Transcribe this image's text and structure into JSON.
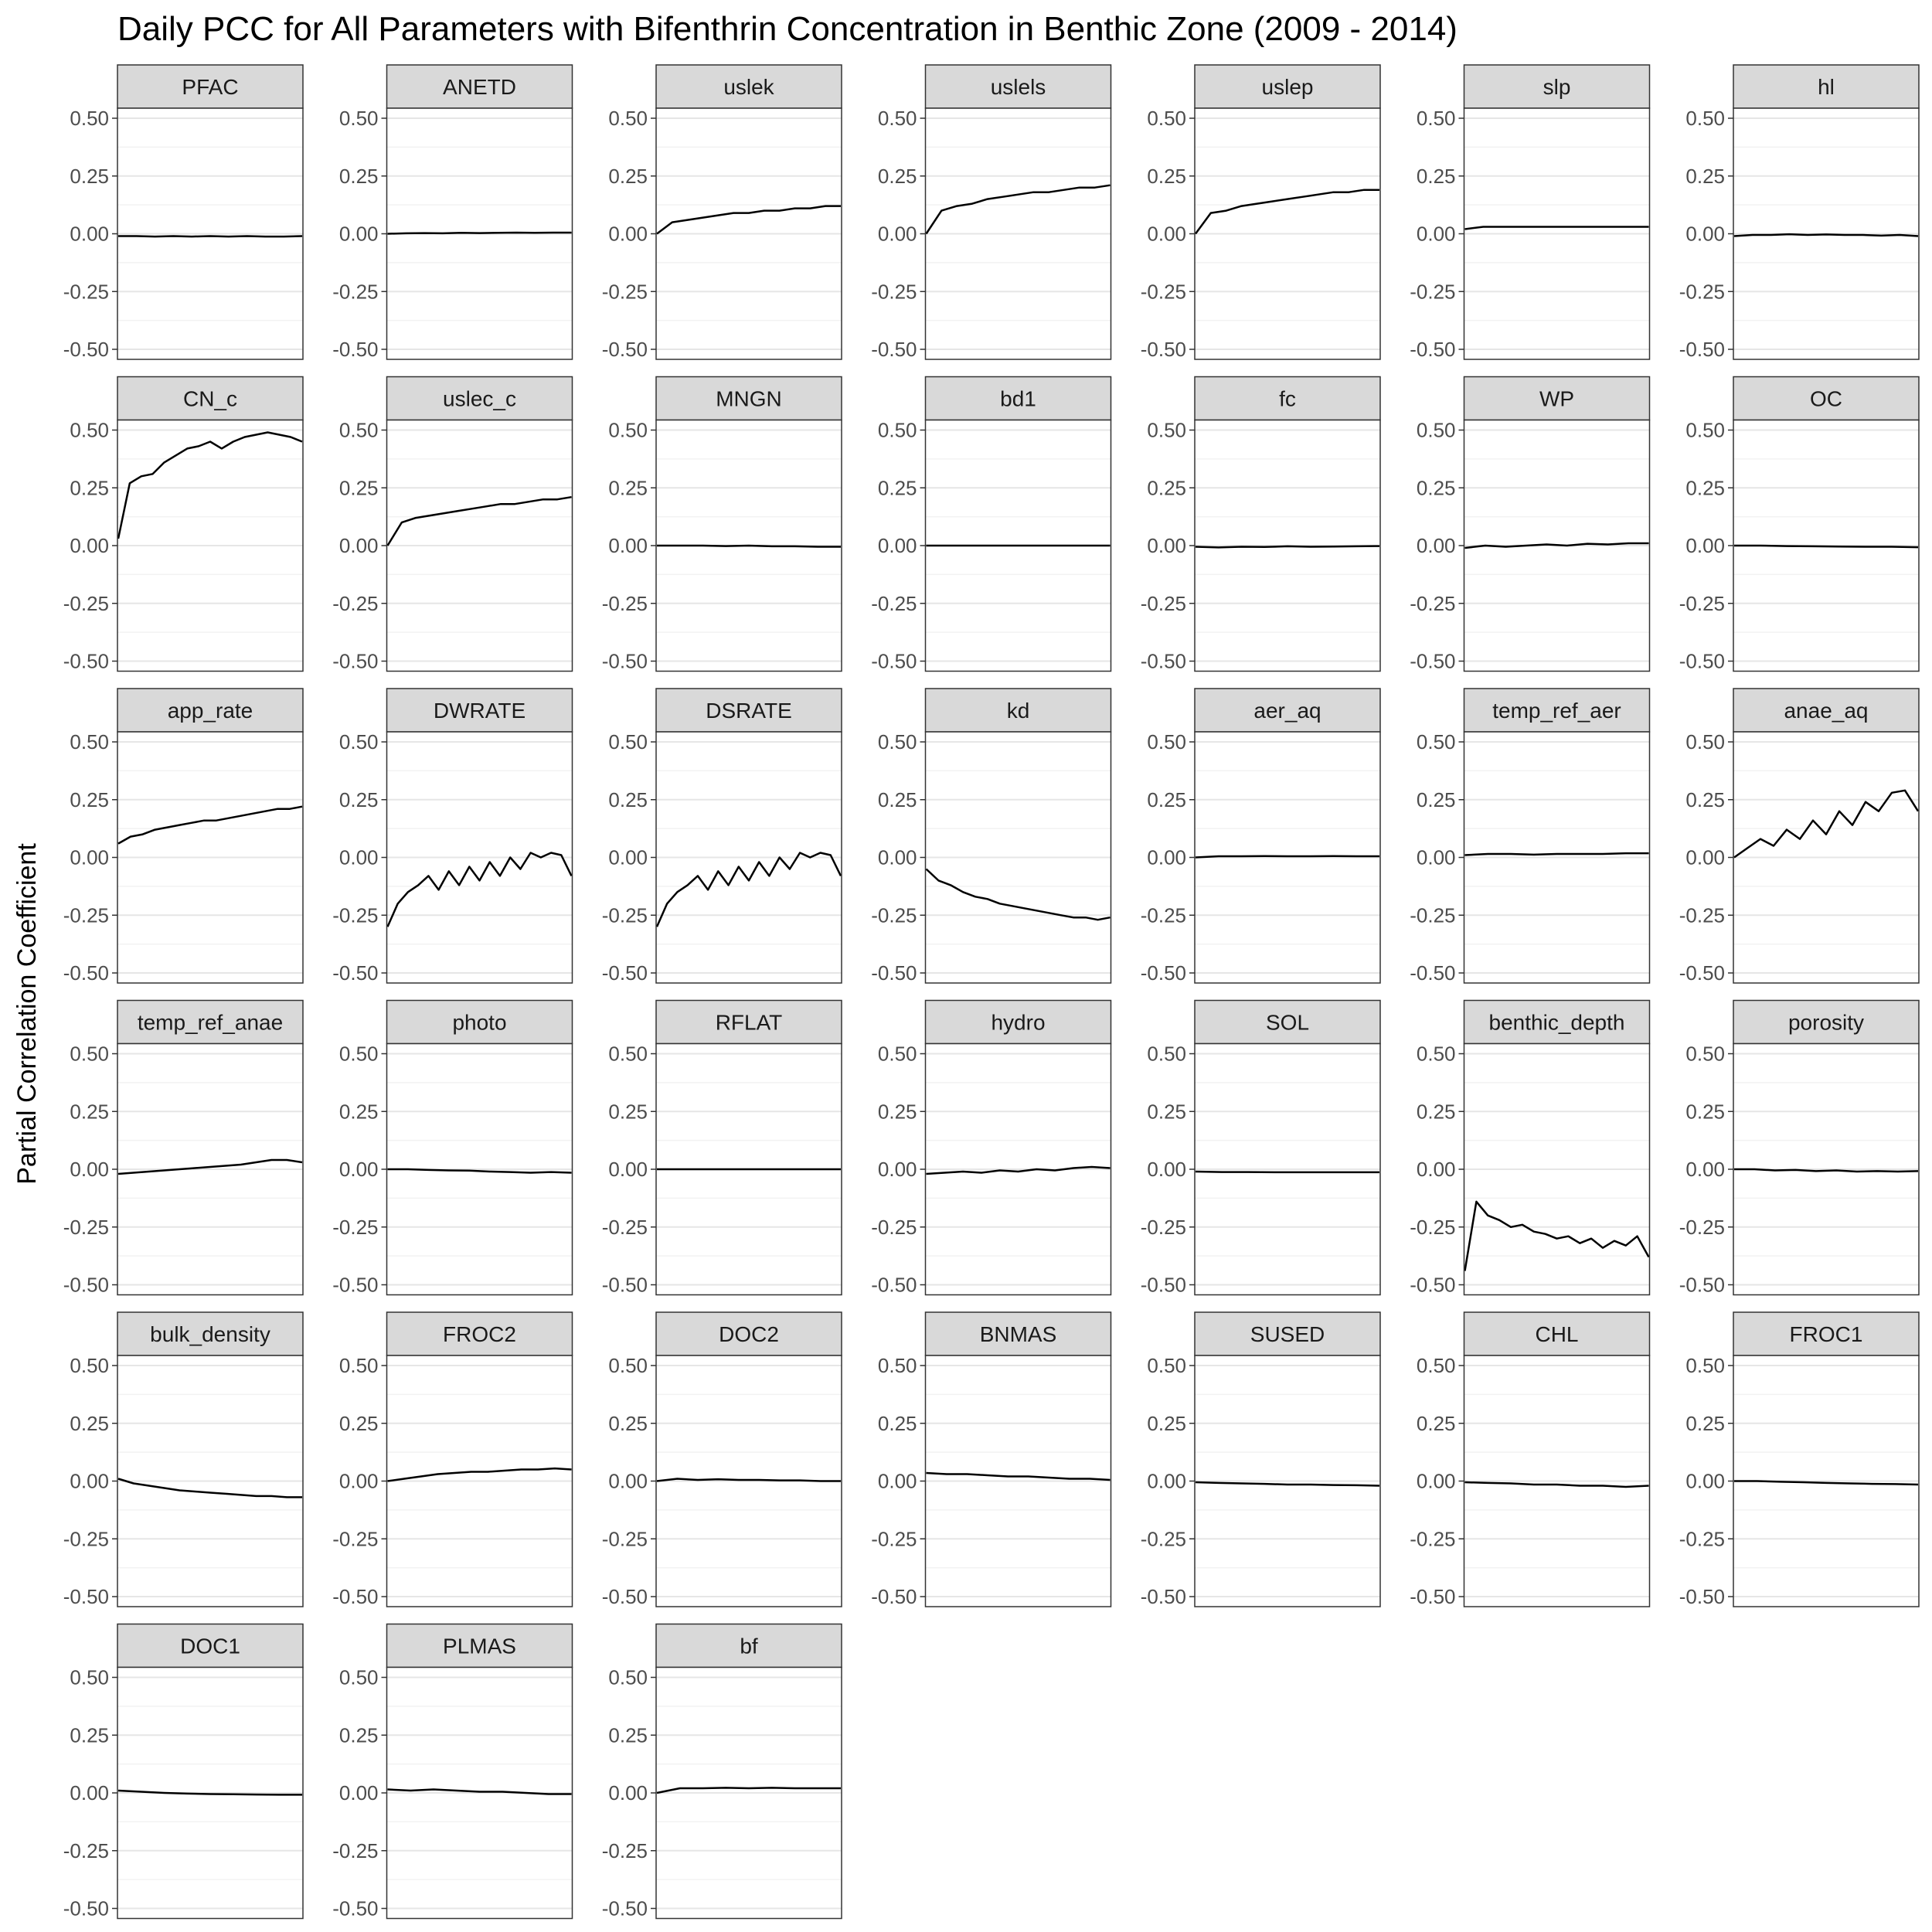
{
  "title": "Daily PCC for All Parameters with Bifenthrin Concentration in Benthic Zone (2009 - 2014)",
  "chart_data": {
    "type": "line",
    "title": "Daily PCC for All Parameters with Bifenthrin Concentration in Benthic Zone (2009 - 2014)",
    "xlabel": "",
    "ylabel": "Partial Correlation Coefficient",
    "ylim": [
      -0.5,
      0.5
    ],
    "yticks": [
      0.5,
      0.25,
      0.0,
      -0.25,
      -0.5
    ],
    "ytick_labels": [
      "0.50",
      "0.25",
      "0.00",
      "-0.25",
      "-0.50"
    ],
    "grid": true,
    "facet_cols": 7,
    "line_color": "#000000",
    "strip_color": "#d9d9d9",
    "panels": [
      {
        "name": "PFAC",
        "values": [
          -0.01,
          -0.01,
          -0.012,
          -0.01,
          -0.012,
          -0.01,
          -0.012,
          -0.01,
          -0.012,
          -0.012,
          -0.01
        ]
      },
      {
        "name": "ANETD",
        "values": [
          0.0,
          0.002,
          0.003,
          0.002,
          0.004,
          0.003,
          0.004,
          0.005,
          0.004,
          0.005,
          0.005
        ]
      },
      {
        "name": "uslek",
        "values": [
          0.0,
          0.05,
          0.06,
          0.07,
          0.08,
          0.09,
          0.09,
          0.1,
          0.1,
          0.11,
          0.11,
          0.12,
          0.12
        ]
      },
      {
        "name": "uslels",
        "values": [
          0.0,
          0.1,
          0.12,
          0.13,
          0.15,
          0.16,
          0.17,
          0.18,
          0.18,
          0.19,
          0.2,
          0.2,
          0.21
        ]
      },
      {
        "name": "uslep",
        "values": [
          0.0,
          0.09,
          0.1,
          0.12,
          0.13,
          0.14,
          0.15,
          0.16,
          0.17,
          0.18,
          0.18,
          0.19,
          0.19
        ]
      },
      {
        "name": "slp",
        "values": [
          0.02,
          0.03,
          0.03,
          0.03,
          0.03,
          0.03,
          0.03,
          0.03,
          0.03,
          0.03,
          0.03
        ]
      },
      {
        "name": "hl",
        "values": [
          -0.01,
          -0.005,
          -0.005,
          -0.002,
          -0.005,
          -0.003,
          -0.005,
          -0.005,
          -0.008,
          -0.005,
          -0.01
        ]
      },
      {
        "name": "CN_c",
        "values": [
          0.03,
          0.27,
          0.3,
          0.31,
          0.36,
          0.39,
          0.42,
          0.43,
          0.45,
          0.42,
          0.45,
          0.47,
          0.48,
          0.49,
          0.48,
          0.47,
          0.45
        ]
      },
      {
        "name": "uslec_c",
        "values": [
          0.0,
          0.1,
          0.12,
          0.13,
          0.14,
          0.15,
          0.16,
          0.17,
          0.18,
          0.18,
          0.19,
          0.2,
          0.2,
          0.21
        ]
      },
      {
        "name": "MNGN",
        "values": [
          0.0,
          0.0,
          0.0,
          -0.002,
          0.0,
          -0.003,
          -0.003,
          -0.005,
          -0.005
        ]
      },
      {
        "name": "bd1",
        "values": [
          0.0,
          0.0,
          0.0,
          0.0,
          0.0,
          0.0,
          0.0
        ]
      },
      {
        "name": "fc",
        "values": [
          -0.005,
          -0.008,
          -0.005,
          -0.006,
          -0.003,
          -0.005,
          -0.004,
          -0.003,
          -0.002
        ]
      },
      {
        "name": "WP",
        "values": [
          -0.01,
          0.0,
          -0.005,
          0.0,
          0.005,
          0.0,
          0.008,
          0.005,
          0.01,
          0.01
        ]
      },
      {
        "name": "OC",
        "values": [
          0.0,
          0.0,
          -0.002,
          -0.003,
          -0.004,
          -0.005,
          -0.005,
          -0.007
        ]
      },
      {
        "name": "app_rate",
        "values": [
          0.06,
          0.09,
          0.1,
          0.12,
          0.13,
          0.14,
          0.15,
          0.16,
          0.16,
          0.17,
          0.18,
          0.19,
          0.2,
          0.21,
          0.21,
          0.22
        ]
      },
      {
        "name": "DWRATE",
        "values": [
          -0.3,
          -0.2,
          -0.15,
          -0.12,
          -0.08,
          -0.14,
          -0.06,
          -0.12,
          -0.04,
          -0.1,
          -0.02,
          -0.08,
          0.0,
          -0.05,
          0.02,
          0.0,
          0.02,
          0.01,
          -0.08
        ]
      },
      {
        "name": "DSRATE",
        "values": [
          -0.3,
          -0.2,
          -0.15,
          -0.12,
          -0.08,
          -0.14,
          -0.06,
          -0.12,
          -0.04,
          -0.1,
          -0.02,
          -0.08,
          0.0,
          -0.05,
          0.02,
          0.0,
          0.02,
          0.01,
          -0.08
        ]
      },
      {
        "name": "kd",
        "values": [
          -0.05,
          -0.1,
          -0.12,
          -0.15,
          -0.17,
          -0.18,
          -0.2,
          -0.21,
          -0.22,
          -0.23,
          -0.24,
          -0.25,
          -0.26,
          -0.26,
          -0.27,
          -0.26
        ]
      },
      {
        "name": "aer_aq",
        "values": [
          0.0,
          0.005,
          0.005,
          0.006,
          0.005,
          0.005,
          0.006,
          0.005,
          0.005
        ]
      },
      {
        "name": "temp_ref_aer",
        "values": [
          0.01,
          0.015,
          0.015,
          0.012,
          0.015,
          0.015,
          0.015,
          0.018,
          0.018
        ]
      },
      {
        "name": "anae_aq",
        "values": [
          0.0,
          0.04,
          0.08,
          0.05,
          0.12,
          0.08,
          0.16,
          0.1,
          0.2,
          0.14,
          0.24,
          0.2,
          0.28,
          0.29,
          0.2
        ]
      },
      {
        "name": "temp_ref_anae",
        "values": [
          -0.02,
          -0.015,
          -0.01,
          -0.005,
          0.0,
          0.005,
          0.01,
          0.015,
          0.02,
          0.03,
          0.04,
          0.04,
          0.03
        ]
      },
      {
        "name": "photo",
        "values": [
          0.0,
          0.0,
          -0.003,
          -0.005,
          -0.006,
          -0.01,
          -0.012,
          -0.015,
          -0.012,
          -0.015
        ]
      },
      {
        "name": "RFLAT",
        "values": [
          0.0,
          0.0,
          0.0,
          0.0,
          0.0,
          0.0
        ]
      },
      {
        "name": "hydro",
        "values": [
          -0.02,
          -0.015,
          -0.01,
          -0.015,
          -0.005,
          -0.01,
          0.0,
          -0.005,
          0.005,
          0.01,
          0.005
        ]
      },
      {
        "name": "SOL",
        "values": [
          -0.01,
          -0.012,
          -0.012,
          -0.013,
          -0.013,
          -0.013,
          -0.013,
          -0.013
        ]
      },
      {
        "name": "benthic_depth",
        "values": [
          -0.44,
          -0.14,
          -0.2,
          -0.22,
          -0.25,
          -0.24,
          -0.27,
          -0.28,
          -0.3,
          -0.29,
          -0.32,
          -0.3,
          -0.34,
          -0.31,
          -0.33,
          -0.29,
          -0.38
        ]
      },
      {
        "name": "porosity",
        "values": [
          0.0,
          0.0,
          -0.005,
          -0.003,
          -0.008,
          -0.005,
          -0.01,
          -0.008,
          -0.01,
          -0.008
        ]
      },
      {
        "name": "bulk_density",
        "values": [
          0.01,
          -0.01,
          -0.02,
          -0.03,
          -0.04,
          -0.045,
          -0.05,
          -0.055,
          -0.06,
          -0.065,
          -0.065,
          -0.07,
          -0.07
        ]
      },
      {
        "name": "FROC2",
        "values": [
          0.0,
          0.01,
          0.02,
          0.03,
          0.035,
          0.04,
          0.04,
          0.045,
          0.05,
          0.05,
          0.055,
          0.05
        ]
      },
      {
        "name": "DOC2",
        "values": [
          0.0,
          0.01,
          0.005,
          0.008,
          0.005,
          0.005,
          0.003,
          0.003,
          0.0,
          0.0
        ]
      },
      {
        "name": "BNMAS",
        "values": [
          0.035,
          0.03,
          0.03,
          0.025,
          0.02,
          0.02,
          0.015,
          0.01,
          0.01,
          0.005
        ]
      },
      {
        "name": "SUSED",
        "values": [
          -0.005,
          -0.008,
          -0.01,
          -0.012,
          -0.015,
          -0.015,
          -0.017,
          -0.018,
          -0.02
        ]
      },
      {
        "name": "CHL",
        "values": [
          -0.005,
          -0.008,
          -0.01,
          -0.015,
          -0.015,
          -0.02,
          -0.02,
          -0.025,
          -0.02
        ]
      },
      {
        "name": "FROC1",
        "values": [
          0.0,
          0.0,
          -0.003,
          -0.005,
          -0.008,
          -0.01,
          -0.012,
          -0.013,
          -0.015
        ]
      },
      {
        "name": "DOC1",
        "values": [
          0.01,
          0.005,
          0.0,
          -0.003,
          -0.005,
          -0.006,
          -0.007,
          -0.008,
          -0.008
        ]
      },
      {
        "name": "PLMAS",
        "values": [
          0.015,
          0.01,
          0.015,
          0.01,
          0.005,
          0.005,
          0.0,
          -0.005,
          -0.005
        ]
      },
      {
        "name": "bf",
        "values": [
          0.0,
          0.02,
          0.02,
          0.022,
          0.02,
          0.022,
          0.02,
          0.02,
          0.02
        ]
      }
    ]
  }
}
